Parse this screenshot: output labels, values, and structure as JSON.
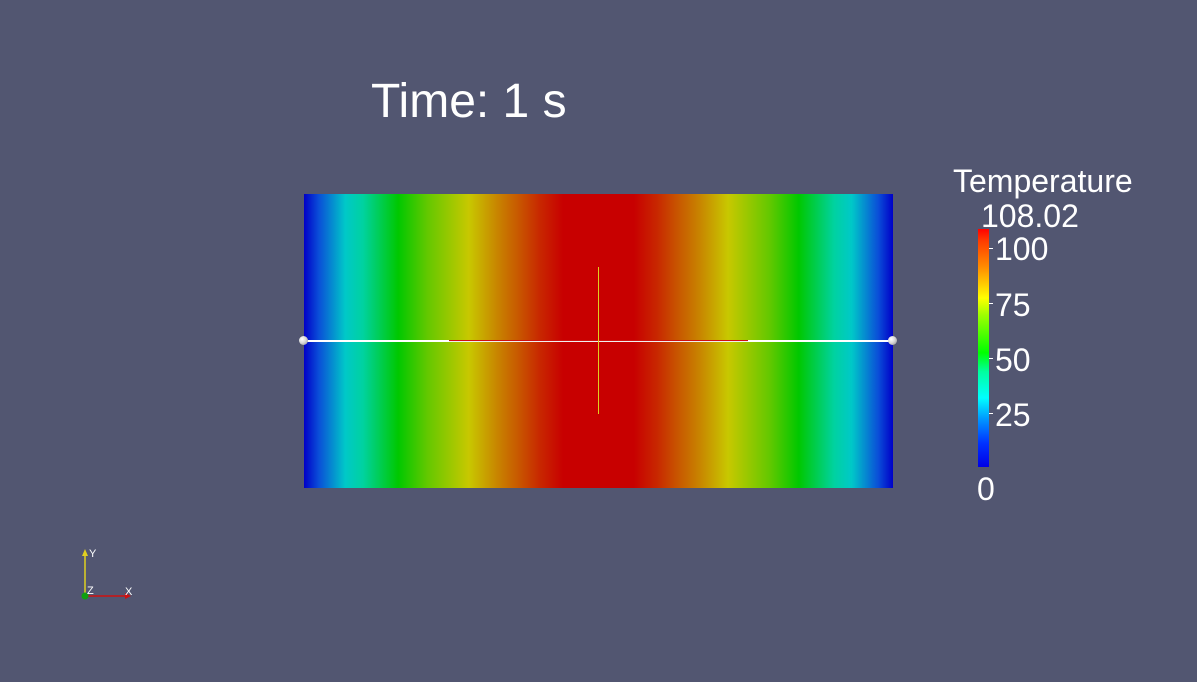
{
  "time_label": "Time: 1 s",
  "legend": {
    "title": "Temperature",
    "max": "108.02",
    "ticks": [
      "100",
      "75",
      "50",
      "25"
    ],
    "min": "0"
  },
  "orientation_axes": {
    "x_label": "X",
    "y_label": "Y",
    "z_label": "Z"
  },
  "colors": {
    "background": "#525671",
    "line": "#ffffff",
    "line_highlight": "#d01010",
    "axis_x": "#d01010",
    "axis_y": "#e0d020",
    "axis_z": "#10a010"
  }
}
